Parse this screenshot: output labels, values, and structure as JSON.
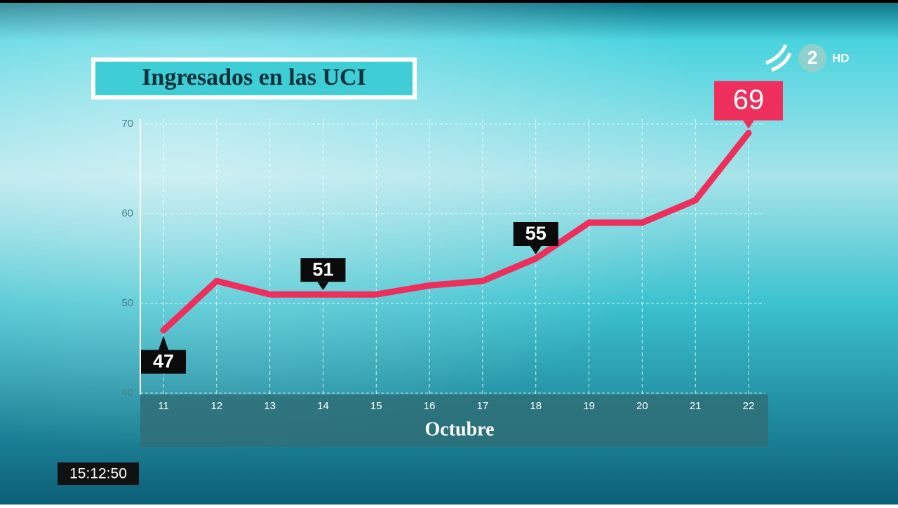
{
  "chart_data": {
    "type": "line",
    "title": "Ingresados en las UCI",
    "x_label": "Octubre",
    "categories": [
      "11",
      "12",
      "13",
      "14",
      "15",
      "16",
      "17",
      "18",
      "19",
      "20",
      "21",
      "22"
    ],
    "series": [
      {
        "name": "Ingresados en las UCI",
        "color": "#ee2f5c",
        "values": [
          47,
          52.5,
          51,
          51,
          51,
          52,
          52.5,
          55,
          59,
          59,
          61.5,
          69
        ],
        "value_labels": [
          "47",
          null,
          null,
          "51",
          null,
          null,
          null,
          "55",
          null,
          null,
          null,
          "69"
        ]
      }
    ],
    "ylim": [
      40,
      70
    ],
    "yticks": [
      40,
      50,
      60,
      70
    ],
    "grid": true
  },
  "clock": "15:12:50",
  "channel": {
    "number": "2",
    "quality": "HD"
  }
}
